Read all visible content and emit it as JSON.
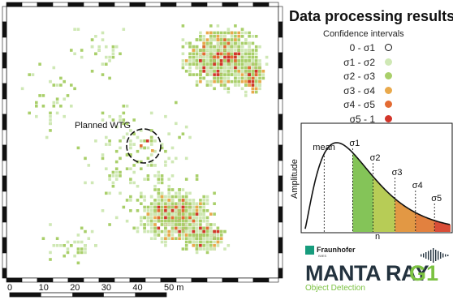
{
  "map": {
    "planned_label": "Planned WTG",
    "scale_ticks": [
      "0",
      "10",
      "20",
      "30",
      "40",
      "50 m"
    ]
  },
  "panel": {
    "title": "Data processing results",
    "legend_subtitle": "Confidence intervals",
    "legend": [
      {
        "label": "0 - σ1",
        "color": "#ffffff",
        "outline": true
      },
      {
        "label": "σ1 - σ2",
        "color": "#cfe8b5"
      },
      {
        "label": "σ2 - σ3",
        "color": "#a9cf6a"
      },
      {
        "label": "σ3 - σ4",
        "color": "#e9a94c"
      },
      {
        "label": "σ4 - σ5",
        "color": "#e36b33"
      },
      {
        "label": "σ5 - 1",
        "color": "#d2352a"
      }
    ]
  },
  "distribution": {
    "ylabel": "Amplitude",
    "xlabel": "n",
    "markers": [
      "mean",
      "σ1",
      "σ2",
      "σ3",
      "σ4",
      "σ5"
    ]
  },
  "brand": {
    "org": "Fraunhofer",
    "org_sub": "IWES",
    "product_main": "MANTA RAY",
    "product_accent": "G1",
    "tagline": "Object Detection"
  }
}
